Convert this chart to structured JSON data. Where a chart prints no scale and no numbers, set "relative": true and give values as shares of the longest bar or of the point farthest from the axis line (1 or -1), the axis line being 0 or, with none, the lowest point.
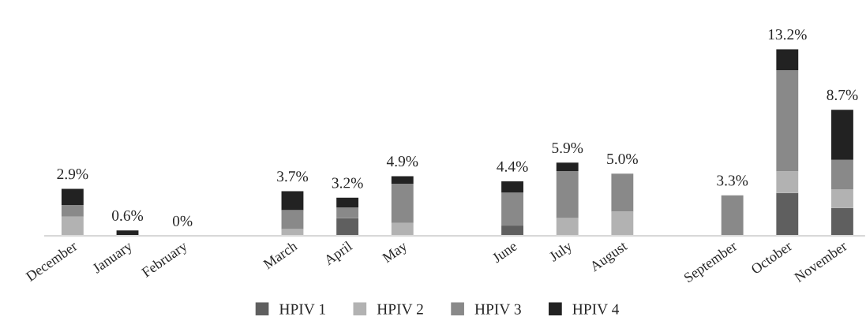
{
  "chart_data": {
    "type": "bar",
    "stacked": true,
    "relative": true,
    "categories": [
      "December",
      "January",
      "February",
      null,
      "March",
      "April",
      "May",
      null,
      "June",
      "July",
      "August",
      null,
      "September",
      "October",
      "November"
    ],
    "series": [
      {
        "name": "HPIV 1",
        "color": "#5f5f5f",
        "values": [
          null,
          null,
          null,
          null,
          null,
          0.095,
          null,
          null,
          0.055,
          null,
          null,
          null,
          null,
          0.23,
          0.149
        ]
      },
      {
        "name": "HPIV 2",
        "color": "#b2b2b2",
        "values": [
          0.103,
          null,
          null,
          null,
          0.036,
          null,
          0.069,
          null,
          null,
          0.096,
          0.129,
          null,
          null,
          0.116,
          0.101
        ]
      },
      {
        "name": "HPIV 3",
        "color": "#898989",
        "values": [
          0.062,
          null,
          null,
          null,
          0.102,
          0.057,
          0.21,
          null,
          0.177,
          0.251,
          0.204,
          null,
          0.217,
          0.542,
          0.157
        ]
      },
      {
        "name": "HPIV 4",
        "color": "#222222",
        "values": [
          0.087,
          0.029,
          0,
          null,
          0.101,
          0.052,
          0.041,
          null,
          0.06,
          0.045,
          null,
          null,
          null,
          0.112,
          0.269
        ]
      }
    ],
    "annotations": [
      {
        "text": "2.9%",
        "x": "December",
        "y": 0.252
      },
      {
        "text": "0.6%",
        "x": "January",
        "y": 0.029
      },
      {
        "text": "0%",
        "x": "February",
        "y": 0
      },
      {
        "text": "3.7%",
        "x": "March",
        "y": 0.239
      },
      {
        "text": "3.2%",
        "x": "April",
        "y": 0.204
      },
      {
        "text": "4.9%",
        "x": "May",
        "y": 0.32
      },
      {
        "text": "4.4%",
        "x": "June",
        "y": 0.292
      },
      {
        "text": "5.9%",
        "x": "July",
        "y": 0.392
      },
      {
        "text": "5.0%",
        "x": "August",
        "y": 0.333
      },
      {
        "text": "3.3%",
        "x": "September",
        "y": 0.217
      },
      {
        "text": "13.2%",
        "x": "October",
        "y": 1.0
      },
      {
        "text": "8.7%",
        "x": "November",
        "y": 0.676
      }
    ],
    "legend": "bottom",
    "marker": "square",
    "grid": false
  }
}
